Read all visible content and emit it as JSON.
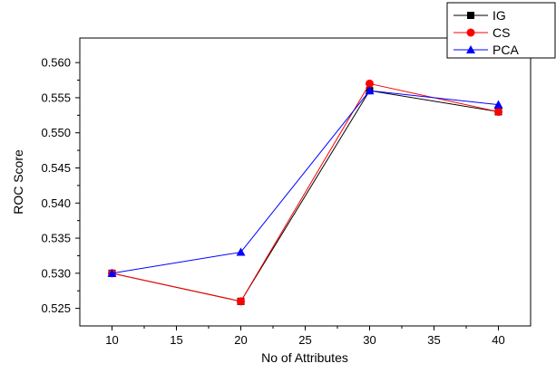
{
  "chart_data": {
    "type": "line",
    "title": "",
    "xlabel": "No of Attributes",
    "ylabel": "ROC Score",
    "x": [
      10,
      20,
      30,
      40
    ],
    "xlim": [
      7.5,
      42.5
    ],
    "ylim": [
      0.5225,
      0.5635
    ],
    "xticks": [
      10,
      15,
      20,
      25,
      30,
      35,
      40
    ],
    "xtick_labels": [
      "10",
      "15",
      "20",
      "25",
      "30",
      "35",
      "40"
    ],
    "yticks": [
      0.525,
      0.53,
      0.535,
      0.54,
      0.545,
      0.55,
      0.555,
      0.56
    ],
    "ytick_labels": [
      "0.525",
      "0.530",
      "0.535",
      "0.540",
      "0.545",
      "0.550",
      "0.555",
      "0.560"
    ],
    "grid": false,
    "legend_position": "top-right",
    "series": [
      {
        "name": "IG",
        "values": [
          0.53,
          0.526,
          0.556,
          0.553
        ],
        "color": "#000000",
        "marker": "square"
      },
      {
        "name": "CS",
        "values": [
          0.53,
          0.526,
          0.557,
          0.553
        ],
        "color": "#ff0000",
        "marker": "circle"
      },
      {
        "name": "PCA",
        "values": [
          0.53,
          0.533,
          0.556,
          0.554
        ],
        "color": "#0000ff",
        "marker": "triangle"
      }
    ]
  }
}
